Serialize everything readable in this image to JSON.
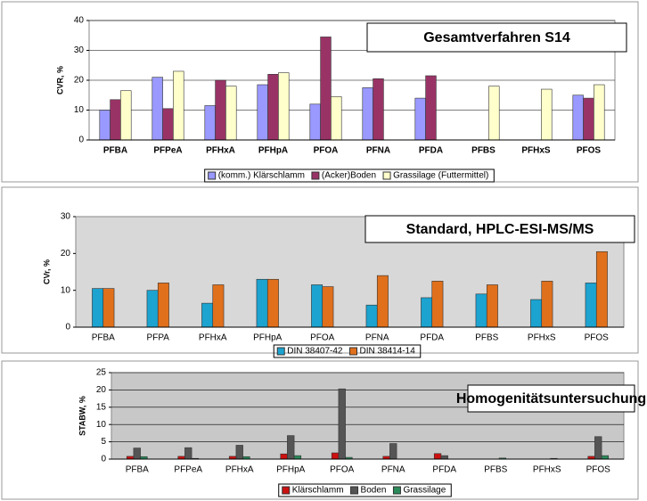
{
  "chart_data": [
    {
      "type": "bar",
      "title": "Gesamtverfahren S14",
      "y_label": "CVR, %",
      "categories": [
        "PFBA",
        "PFPeA",
        "PFHxA",
        "PFHpA",
        "PFOA",
        "PFNA",
        "PFDA",
        "PFBS",
        "PFHxS",
        "PFOS"
      ],
      "series": [
        {
          "name": "(komm.) Klärschlamm",
          "color": "#9999ff",
          "values": [
            10,
            21,
            11.5,
            18.5,
            12,
            17.5,
            14,
            null,
            null,
            15
          ]
        },
        {
          "name": "(Acker)Boden",
          "color": "#993366",
          "values": [
            13.5,
            10.5,
            20,
            22,
            34.5,
            20.5,
            21.5,
            null,
            null,
            14
          ]
        },
        {
          "name": "Grassilage (Futtermittel)",
          "color": "#ffffcc",
          "values": [
            16.5,
            23,
            18,
            22.5,
            14.5,
            null,
            null,
            18,
            17,
            18.5
          ]
        }
      ],
      "ylim": [
        0,
        40
      ],
      "yticks": [
        0,
        10,
        20,
        30,
        40
      ],
      "grid": true
    },
    {
      "type": "bar",
      "title": "Standard, HPLC-ESI-MS/MS",
      "y_label": "CVr, %",
      "categories": [
        "PFBA",
        "PFPA",
        "PFHxA",
        "PFHpA",
        "PFOA",
        "PFNA",
        "PFDA",
        "PFBS",
        "PFHxS",
        "PFOS"
      ],
      "series": [
        {
          "name": "DIN 38407-42",
          "color": "#1ca3d0",
          "values": [
            10.5,
            10,
            6.5,
            13,
            11.5,
            6,
            8,
            9,
            7.5,
            12
          ]
        },
        {
          "name": "DIN 38414-14",
          "color": "#e0701c",
          "values": [
            10.5,
            12,
            11.5,
            13,
            11,
            14,
            12.5,
            11.5,
            12.5,
            20.5
          ]
        }
      ],
      "ylim": [
        0,
        30
      ],
      "yticks": [
        0,
        10,
        20,
        30
      ],
      "grid": false
    },
    {
      "type": "bar",
      "title": "Homogenitätsuntersuchung",
      "y_label": "STABW, %",
      "categories": [
        "PFBA",
        "PFPeA",
        "PFHxA",
        "PFHpA",
        "PFOA",
        "PFNA",
        "PFDA",
        "PFBS",
        "PFHxS",
        "PFOS"
      ],
      "series": [
        {
          "name": "Klärschlamm",
          "color": "#cc1111",
          "values": [
            0.8,
            0.8,
            0.8,
            1.5,
            1.8,
            0.8,
            1.6,
            null,
            null,
            0.8
          ]
        },
        {
          "name": "Boden",
          "color": "#555555",
          "values": [
            3.2,
            3.3,
            4,
            6.8,
            20.3,
            4.5,
            1,
            null,
            null,
            6.5
          ]
        },
        {
          "name": "Grassilage",
          "color": "#2a8a5a",
          "values": [
            0.7,
            0.2,
            0.7,
            1,
            0.5,
            null,
            null,
            0.3,
            0.2,
            1
          ]
        }
      ],
      "ylim": [
        0,
        25
      ],
      "yticks": [
        0,
        5,
        10,
        15,
        20,
        25
      ],
      "grid": true
    }
  ]
}
